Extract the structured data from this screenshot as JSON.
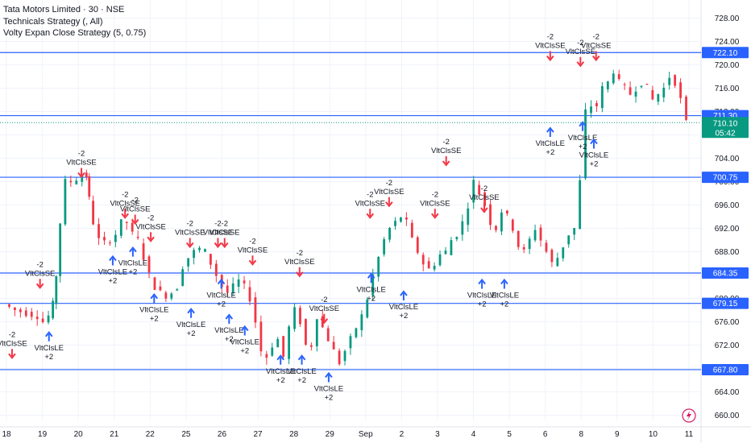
{
  "legend": {
    "title": "Tata Motors Limited · 30 · NSE",
    "line2": "Technicals Strategy (, All)",
    "line3": "Volty Expan Close Strategy (5, 0.75)"
  },
  "colors": {
    "up": "#089981",
    "down": "#f23645",
    "level": "#2962ff",
    "long_arrow": "#2962ff",
    "short_arrow": "#f23645",
    "price_badge": "#089981",
    "grid": "#f0f3fa",
    "axis_text": "#131722"
  },
  "chart_data": {
    "type": "candlestick",
    "symbol": "Tata Motors Limited",
    "interval": "30",
    "exchange": "NSE",
    "ylim": [
      658,
      730
    ],
    "y_ticks": [
      660,
      664,
      668,
      672,
      676,
      680,
      684,
      688,
      692,
      696,
      700,
      704,
      708,
      712,
      716,
      720,
      724,
      728
    ],
    "x_ticks": [
      "18",
      "19",
      "20",
      "21",
      "22",
      "25",
      "26",
      "27",
      "28",
      "29",
      "Sep",
      "2",
      "3",
      "4",
      "5",
      "6",
      "8",
      "9",
      "10",
      "11"
    ],
    "levels": [
      {
        "value": 722.1,
        "label": "722.10"
      },
      {
        "value": 711.3,
        "label": "711.30"
      },
      {
        "value": 700.75,
        "label": "700.75"
      },
      {
        "value": 684.35,
        "label": "684.35"
      },
      {
        "value": 679.15,
        "label": "679.15"
      },
      {
        "value": 667.8,
        "label": "667.80"
      }
    ],
    "last_price": {
      "value": 710.1,
      "label": "710.10",
      "countdown": "05:42"
    },
    "price_path": [
      [
        0,
        679
      ],
      [
        1,
        678
      ],
      [
        2,
        677.5
      ],
      [
        3,
        677
      ],
      [
        3.5,
        676
      ],
      [
        4,
        677
      ],
      [
        4.3,
        679
      ],
      [
        4.6,
        684
      ],
      [
        5,
        693
      ],
      [
        5.5,
        700
      ],
      [
        6,
        700
      ],
      [
        6.5,
        700.5
      ],
      [
        7,
        701
      ],
      [
        7.3,
        701
      ],
      [
        7.5,
        697
      ],
      [
        8,
        693
      ],
      [
        8.5,
        690
      ],
      [
        9,
        689.5
      ],
      [
        9.5,
        690
      ],
      [
        10,
        691
      ],
      [
        10.5,
        693
      ],
      [
        11,
        693
      ],
      [
        11.5,
        691
      ],
      [
        12,
        690
      ],
      [
        12.5,
        687
      ],
      [
        13,
        684
      ],
      [
        13.5,
        682
      ],
      [
        14,
        681
      ],
      [
        14.5,
        680.5
      ],
      [
        15,
        681
      ],
      [
        15.5,
        682
      ],
      [
        16,
        685.5
      ],
      [
        16.5,
        687
      ],
      [
        17,
        688
      ],
      [
        17.5,
        688.5
      ],
      [
        18,
        688
      ],
      [
        18.5,
        686
      ],
      [
        19,
        684
      ],
      [
        19.5,
        682
      ],
      [
        20,
        681
      ],
      [
        20.5,
        682
      ],
      [
        21,
        683
      ],
      [
        21.5,
        682
      ],
      [
        22,
        680
      ],
      [
        22.5,
        676
      ],
      [
        23,
        671
      ],
      [
        23.5,
        670
      ],
      [
        24,
        672
      ],
      [
        24.5,
        673
      ],
      [
        25,
        670
      ],
      [
        25.5,
        675
      ],
      [
        26,
        678
      ],
      [
        26.5,
        676
      ],
      [
        27,
        672
      ],
      [
        27.5,
        672
      ],
      [
        28,
        677
      ],
      [
        28.5,
        675
      ],
      [
        29,
        673
      ],
      [
        29.5,
        671
      ],
      [
        30,
        669
      ],
      [
        30.5,
        671
      ],
      [
        31,
        673
      ],
      [
        31.5,
        675
      ],
      [
        32,
        677
      ],
      [
        32.5,
        680
      ],
      [
        33,
        684
      ],
      [
        33.5,
        687
      ],
      [
        34,
        690
      ],
      [
        34.5,
        692
      ],
      [
        35,
        693
      ],
      [
        35.5,
        694
      ],
      [
        36,
        693
      ],
      [
        36.5,
        690
      ],
      [
        37,
        688
      ],
      [
        37.5,
        686
      ],
      [
        38,
        685
      ],
      [
        38.5,
        686
      ],
      [
        39,
        687.5
      ],
      [
        39.5,
        688
      ],
      [
        40,
        690
      ],
      [
        40.5,
        691
      ],
      [
        41,
        693
      ],
      [
        41.5,
        696
      ],
      [
        42,
        700
      ],
      [
        42.5,
        698
      ],
      [
        43,
        696
      ],
      [
        43.5,
        693
      ],
      [
        44,
        692
      ],
      [
        44.5,
        695
      ],
      [
        45,
        694
      ],
      [
        45.5,
        692
      ],
      [
        46,
        689
      ],
      [
        46.5,
        688
      ],
      [
        47,
        690
      ],
      [
        47.5,
        692
      ],
      [
        48,
        690
      ],
      [
        48.5,
        688
      ],
      [
        49,
        686
      ],
      [
        49.5,
        687
      ],
      [
        50,
        689
      ],
      [
        50.5,
        691
      ],
      [
        51,
        692
      ],
      [
        51.5,
        700
      ],
      [
        52,
        712
      ],
      [
        52.5,
        713
      ],
      [
        53,
        713
      ],
      [
        53.5,
        716
      ],
      [
        54,
        717
      ],
      [
        54.5,
        719
      ],
      [
        55,
        717
      ],
      [
        55.5,
        716
      ],
      [
        56,
        715
      ],
      [
        56.5,
        716
      ],
      [
        57,
        717
      ],
      [
        57.5,
        716
      ],
      [
        58,
        714
      ],
      [
        58.5,
        715
      ],
      [
        59,
        716
      ],
      [
        59.5,
        718
      ],
      [
        60,
        717
      ],
      [
        60.5,
        714
      ],
      [
        61,
        710.1
      ]
    ],
    "signals": [
      {
        "type": "short",
        "text": "-2",
        "text2": "VltClsSE",
        "t": 6.7,
        "p": 700
      },
      {
        "type": "short",
        "text": "-2",
        "text2": "VltClsSE",
        "t": 10.6,
        "p": 693
      },
      {
        "type": "short",
        "text": "-2",
        "text2": "VltClsSE",
        "t": 11.5,
        "p": 692
      },
      {
        "type": "long",
        "text": "VltClsLE",
        "text2": "+2",
        "t": 9.5,
        "p": 688
      },
      {
        "type": "long",
        "text": "VltClsLE",
        "text2": "+2",
        "t": 11.3,
        "p": 689.5
      },
      {
        "type": "short",
        "text": "-2",
        "text2": "VltClsSE",
        "t": 12.9,
        "p": 689
      },
      {
        "type": "long",
        "text": "VltClsLE",
        "text2": "+2",
        "t": 13.2,
        "p": 681.5
      },
      {
        "type": "short",
        "text": "-2",
        "text2": "VltClsSE",
        "t": 16.4,
        "p": 688
      },
      {
        "type": "long",
        "text": "VltClsLE",
        "text2": "+2",
        "t": 16.5,
        "p": 679
      },
      {
        "type": "short",
        "text": "-2",
        "text2": "VltClsSE",
        "t": 18.9,
        "p": 688
      },
      {
        "type": "short",
        "text": "-2",
        "text2": "VltClsSE",
        "t": 19.5,
        "p": 688
      },
      {
        "type": "long",
        "text": "VltClsLE",
        "text2": "+2",
        "t": 19.2,
        "p": 684
      },
      {
        "type": "long",
        "text": "VltClsLE",
        "text2": "+2",
        "t": 19.9,
        "p": 678
      },
      {
        "type": "short",
        "text": "-2",
        "text2": "VltClsSE",
        "t": 22.0,
        "p": 685
      },
      {
        "type": "long",
        "text": "VltClsLE",
        "text2": "+2",
        "t": 21.3,
        "p": 676
      },
      {
        "type": "short",
        "text": "-2",
        "text2": "VltClsSE",
        "t": 26.2,
        "p": 683
      },
      {
        "type": "long",
        "text": "VltClsLE",
        "text2": "+2",
        "t": 24.5,
        "p": 671
      },
      {
        "type": "long",
        "text": "VltClsLE",
        "text2": "+2",
        "t": 26.4,
        "p": 671
      },
      {
        "type": "short",
        "text": "-2",
        "text2": "VltClsSE",
        "t": 28.4,
        "p": 675
      },
      {
        "type": "long",
        "text": "VltClsLE",
        "text2": "+2",
        "t": 28.8,
        "p": 668
      },
      {
        "type": "short",
        "text": "-2",
        "text2": "VltClsSE",
        "t": 32.5,
        "p": 693
      },
      {
        "type": "short",
        "text": "-2",
        "text2": "VltClsSE",
        "t": 34.2,
        "p": 695
      },
      {
        "type": "long",
        "text": "VltClsLE",
        "text2": "+2",
        "t": 32.6,
        "p": 685
      },
      {
        "type": "long",
        "text": "VltClsLE",
        "text2": "+2",
        "t": 35.5,
        "p": 682
      },
      {
        "type": "short",
        "text": "-2",
        "text2": "VltClsSE",
        "t": 39.3,
        "p": 702
      },
      {
        "type": "short",
        "text": "-2",
        "text2": "VltClsSE",
        "t": 38.3,
        "p": 693
      },
      {
        "type": "short",
        "text": "-2",
        "text2": "VltClsSE",
        "t": 42.7,
        "p": 694
      },
      {
        "type": "long",
        "text": "VltClsLE",
        "text2": "+2",
        "t": 42.5,
        "p": 684
      },
      {
        "type": "long",
        "text": "VltClsLE",
        "text2": "+2",
        "t": 44.5,
        "p": 684
      },
      {
        "type": "short",
        "text": "-2",
        "text2": "VltClsSE",
        "t": 48.6,
        "p": 720
      },
      {
        "type": "long",
        "text": "VltClsLE",
        "text2": "+2",
        "t": 48.6,
        "p": 710
      },
      {
        "type": "short",
        "text": "-2",
        "text2": "VltClsSE",
        "t": 51.3,
        "p": 719
      },
      {
        "type": "short",
        "text": "-2",
        "text2": "VltClsSE",
        "t": 52.7,
        "p": 720
      },
      {
        "type": "long",
        "text": "VltClsLE",
        "text2": "+2",
        "t": 51.5,
        "p": 711
      },
      {
        "type": "long",
        "text": "VltClsLE",
        "text2": "+2",
        "t": 52.5,
        "p": 708
      },
      {
        "type": "short",
        "text": "-2",
        "text2": "VltClsSE",
        "t": 0.5,
        "p": 669
      },
      {
        "type": "long",
        "text": "VltClsLE",
        "text2": "+2",
        "t": 3.8,
        "p": 675
      },
      {
        "type": "short",
        "text": "-2",
        "text2": "VltClsSE",
        "t": 3.0,
        "p": 681
      }
    ]
  }
}
